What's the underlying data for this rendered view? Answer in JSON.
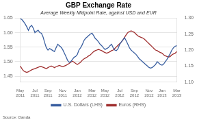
{
  "chart_data": {
    "type": "line",
    "title": "GBP Exchange Rate",
    "subtitle": "Average Weekly Midpoint Rate, against USD and EUR",
    "source": "Source: Oanda",
    "categories": [
      "May\n2011",
      null,
      null,
      null,
      null,
      null,
      null,
      null,
      null,
      "Jul\n2011",
      null,
      null,
      null,
      null,
      null,
      null,
      null,
      "Sep\n2011",
      null,
      null,
      null,
      null,
      null,
      null,
      null,
      null,
      "Nov\n2011",
      null,
      null,
      null,
      null,
      null,
      null,
      null,
      null,
      "Jan\n2012",
      null,
      null,
      null,
      null,
      null,
      null,
      null,
      null,
      "Mar\n2012",
      null,
      null,
      null,
      null,
      null,
      null,
      null,
      "May\n2012",
      null,
      null,
      null,
      null,
      null,
      null,
      null,
      null,
      "Jul\n2012",
      null,
      null,
      null,
      null,
      null,
      null,
      null,
      null,
      "Sep\n2012",
      null,
      null,
      null,
      null,
      null,
      null,
      null,
      null,
      "Nov\n2012",
      null,
      null,
      null,
      null,
      null,
      null,
      null,
      "Jan\n2013",
      null,
      null,
      null,
      null,
      null,
      null,
      null,
      null,
      "Mar\n2013"
    ],
    "series": [
      {
        "name": "U.S. Dollars (LHS)",
        "color": "#3a5fa0",
        "values": [
          1.648,
          1.645,
          1.638,
          1.63,
          1.62,
          1.608,
          1.62,
          1.625,
          1.615,
          1.6,
          1.605,
          1.608,
          1.6,
          1.598,
          1.585,
          1.565,
          1.548,
          1.54,
          1.545,
          1.542,
          1.538,
          1.535,
          1.548,
          1.56,
          1.555,
          1.55,
          1.542,
          1.53,
          1.518,
          1.505,
          1.498,
          1.5,
          1.508,
          1.515,
          1.518,
          1.525,
          1.54,
          1.548,
          1.558,
          1.572,
          1.58,
          1.585,
          1.59,
          1.595,
          1.598,
          1.59,
          1.58,
          1.575,
          1.568,
          1.56,
          1.555,
          1.548,
          1.542,
          1.545,
          1.548,
          1.555,
          1.56,
          1.548,
          1.54,
          1.538,
          1.545,
          1.56,
          1.568,
          1.575,
          1.582,
          1.572,
          1.56,
          1.548,
          1.54,
          1.535,
          1.53,
          1.525,
          1.518,
          1.51,
          1.505,
          1.5,
          1.495,
          1.49,
          1.485,
          1.48,
          1.478,
          1.48,
          1.485,
          1.49,
          1.5,
          1.495,
          1.49,
          1.488,
          1.492,
          1.5,
          1.508,
          1.518,
          1.528,
          1.54,
          1.548,
          1.553,
          1.555
        ]
      },
      {
        "name": "Euros (RHS)",
        "color": "#a03030",
        "axis": "y2",
        "values": [
          1.15,
          1.142,
          1.135,
          1.132,
          1.13,
          1.132,
          1.135,
          1.138,
          1.14,
          1.142,
          1.144,
          1.146,
          1.148,
          1.148,
          1.146,
          1.144,
          1.142,
          1.145,
          1.148,
          1.15,
          1.148,
          1.145,
          1.148,
          1.15,
          1.152,
          1.15,
          1.148,
          1.15,
          1.152,
          1.155,
          1.158,
          1.162,
          1.165,
          1.162,
          1.158,
          1.155,
          1.158,
          1.162,
          1.168,
          1.172,
          1.175,
          1.178,
          1.182,
          1.185,
          1.19,
          1.195,
          1.198,
          1.2,
          1.202,
          1.2,
          1.198,
          1.195,
          1.192,
          1.19,
          1.192,
          1.195,
          1.198,
          1.2,
          1.205,
          1.21,
          1.215,
          1.22,
          1.225,
          1.232,
          1.24,
          1.248,
          1.255,
          1.258,
          1.26,
          1.258,
          1.255,
          1.25,
          1.245,
          1.242,
          1.24,
          1.238,
          1.235,
          1.23,
          1.225,
          1.22,
          1.215,
          1.21,
          1.205,
          1.2,
          1.198,
          1.195,
          1.192,
          1.19,
          1.185,
          1.182,
          1.18,
          1.178,
          1.18,
          1.185,
          1.188,
          1.19,
          1.195
        ]
      }
    ],
    "ylim": [
      1.43,
      1.65
    ],
    "yticks": [
      1.45,
      {
        "value": 1.5,
        "label": "1.50"
      },
      1.55,
      {
        "value": 1.6,
        "label": "1.60"
      },
      1.65
    ],
    "y2lim": [
      1.1,
      1.3
    ],
    "y2ticks": [
      {
        "value": 1.1,
        "label": "1.10"
      },
      1.15,
      {
        "value": 1.2,
        "label": "1.20"
      },
      1.25,
      {
        "value": 1.3,
        "label": "1.30"
      }
    ],
    "grid": true,
    "legend": "bottom"
  }
}
